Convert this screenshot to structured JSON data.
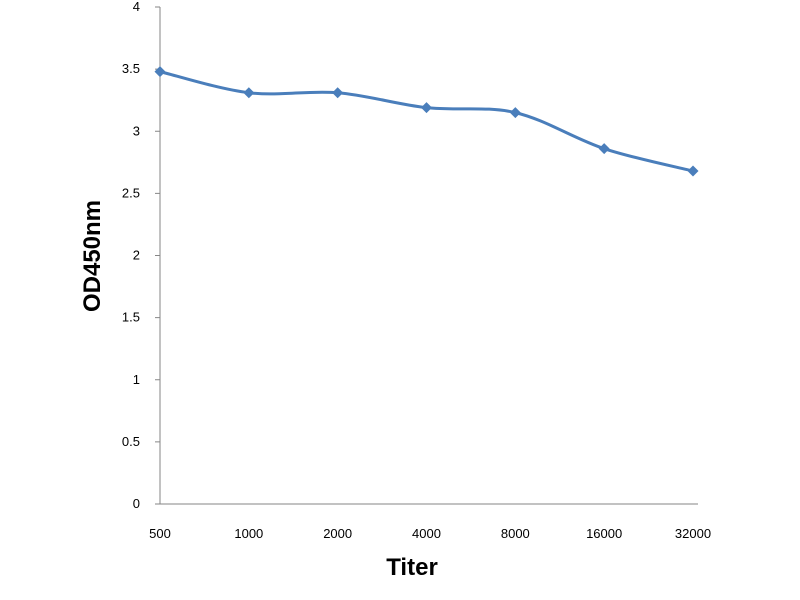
{
  "chart_data": {
    "type": "line",
    "title": "",
    "xlabel": "Titer",
    "ylabel": "OD450nm",
    "categories": [
      "500",
      "1000",
      "2000",
      "4000",
      "8000",
      "16000",
      "32000"
    ],
    "series": [
      {
        "values": [
          3.48,
          3.31,
          3.31,
          3.19,
          3.15,
          2.86,
          2.68
        ],
        "color": "#4a7ebb",
        "marker": "diamond"
      }
    ],
    "ylim": [
      0,
      4
    ],
    "yticks": [
      0,
      0.5,
      1,
      1.5,
      2,
      2.5,
      3,
      3.5,
      4
    ],
    "ytick_labels": [
      "0",
      "0.5",
      "1",
      "1.5",
      "2",
      "2.5",
      "3",
      "3.5",
      "4"
    ],
    "grid": false,
    "legend": "none",
    "smooth": true
  }
}
